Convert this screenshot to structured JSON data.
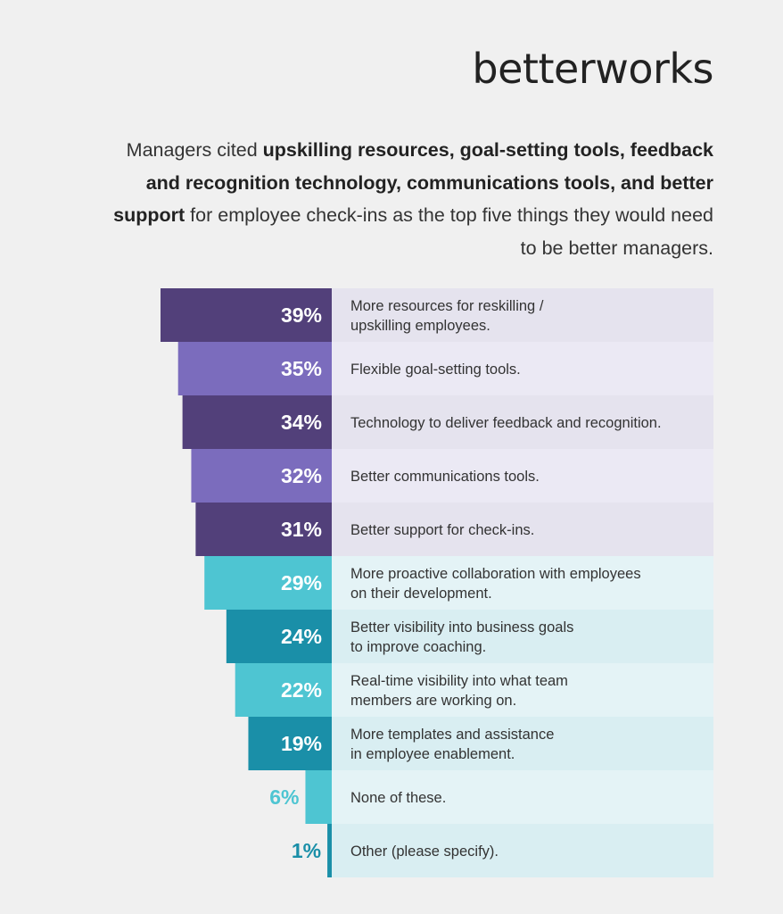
{
  "brand": {
    "name": "betterworks"
  },
  "headline": {
    "p1": "Managers cited ",
    "b1": "upskilling resources, goal-setting tools, feedback and recognition technology, communications tools, and better support",
    "p2": " for employee check-ins as the top five things they would need to be better managers."
  },
  "colors": {
    "purple_dark": "#52407a",
    "purple_light": "#7b6cbd",
    "teal_light": "#4ec5d2",
    "teal_dark": "#1a8fa8",
    "row_purple_a": "#e5e3ee",
    "row_purple_b": "#ebe9f4",
    "row_teal_a": "#e4f3f6",
    "row_teal_b": "#d9eef2",
    "label_text": "#333333"
  },
  "chart_data": {
    "type": "bar",
    "orientation": "horizontal",
    "unit": "%",
    "categories": [
      "More resources for reskilling / upskilling employees.",
      "Flexible goal-setting tools.",
      "Technology to deliver feedback and recognition.",
      "Better communications tools.",
      "Better support for check-ins.",
      "More proactive collaboration with employees on their development.",
      "Better visibility into business goals to improve coaching.",
      "Real-time visibility into what team members are working on.",
      "More templates and assistance in employee enablement.",
      "None of these.",
      "Other (please specify)."
    ],
    "category_lines": [
      [
        "More resources for reskilling /",
        "upskilling employees."
      ],
      [
        "Flexible goal-setting tools."
      ],
      [
        "Technology to deliver feedback and recognition."
      ],
      [
        "Better communications tools."
      ],
      [
        "Better support for check-ins."
      ],
      [
        "More proactive collaboration with employees",
        "on their development."
      ],
      [
        "Better visibility into business goals",
        "to improve coaching."
      ],
      [
        "Real-time visibility into what team",
        "members are working on."
      ],
      [
        "More templates and assistance",
        "in employee enablement."
      ],
      [
        "None of these."
      ],
      [
        "Other (please specify)."
      ]
    ],
    "values": [
      39,
      35,
      34,
      32,
      31,
      29,
      24,
      22,
      19,
      6,
      1
    ],
    "value_labels": [
      "39%",
      "35%",
      "34%",
      "32%",
      "31%",
      "29%",
      "24%",
      "22%",
      "19%",
      "6%",
      "1%"
    ],
    "bar_colors": [
      "purple_dark",
      "purple_light",
      "purple_dark",
      "purple_light",
      "purple_dark",
      "teal_light",
      "teal_dark",
      "teal_light",
      "teal_dark",
      "teal_light",
      "teal_dark"
    ],
    "row_colors": [
      "row_purple_a",
      "row_purple_b",
      "row_purple_a",
      "row_purple_b",
      "row_purple_a",
      "row_teal_a",
      "row_teal_b",
      "row_teal_a",
      "row_teal_b",
      "row_teal_a",
      "row_teal_b"
    ],
    "xlim": [
      0,
      39
    ],
    "direction": "bars extend leftward"
  }
}
